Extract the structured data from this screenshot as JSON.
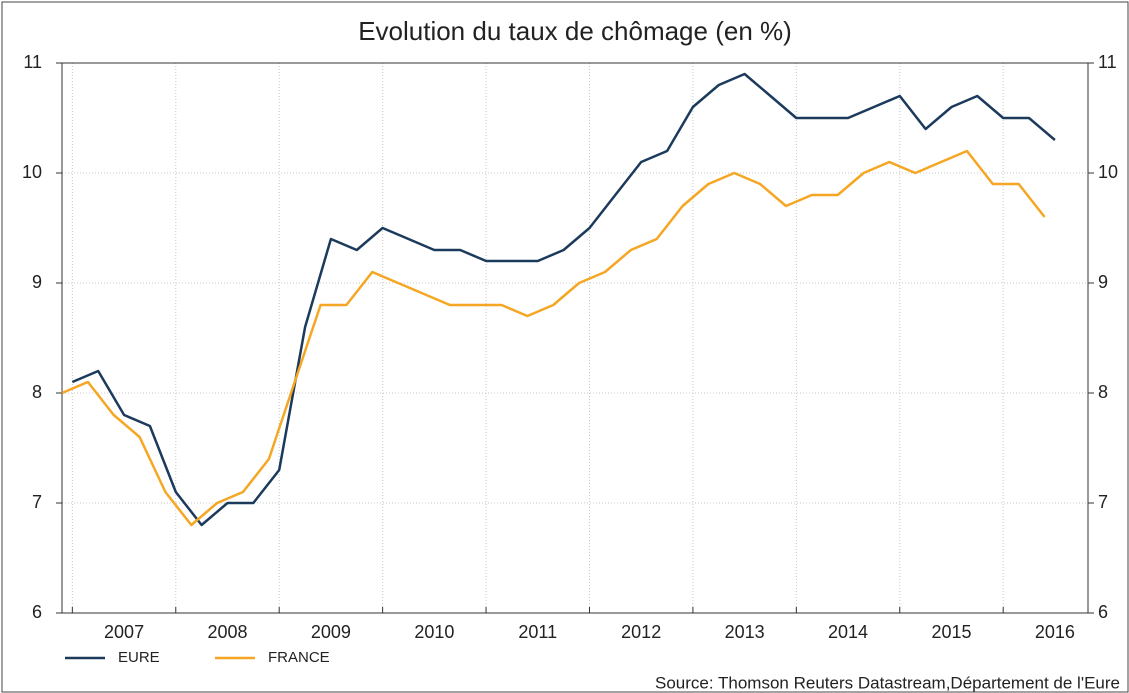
{
  "chart_data": {
    "type": "line",
    "title": "Evolution du taux de chômage (en %)",
    "source": "Source: Thomson Reuters Datastream,Département de l'Eure",
    "xlim": [
      2006.9,
      2016.82
    ],
    "xticks": [
      2007,
      2008,
      2009,
      2010,
      2011,
      2012,
      2013,
      2014,
      2015,
      2016
    ],
    "ylim": [
      6,
      11
    ],
    "yticks": [
      6,
      7,
      8,
      9,
      10,
      11
    ],
    "y2lim": [
      6,
      11
    ],
    "y2ticks": [
      6,
      7,
      8,
      9,
      10,
      11
    ],
    "grid": true,
    "legend": "bottom-left",
    "series": [
      {
        "name": "EURE",
        "color": "#1b3a5c",
        "x": [
          2007,
          2007.25,
          2007.5,
          2007.75,
          2008,
          2008.25,
          2008.5,
          2008.75,
          2009,
          2009.25,
          2009.5,
          2009.75,
          2010,
          2010.25,
          2010.5,
          2010.75,
          2011,
          2011.25,
          2011.5,
          2011.75,
          2012,
          2012.25,
          2012.5,
          2012.75,
          2013,
          2013.25,
          2013.5,
          2013.75,
          2014,
          2014.25,
          2014.5,
          2014.75,
          2015,
          2015.25,
          2015.5,
          2015.75,
          2016,
          2016.25,
          2016.5
        ],
        "values": [
          8.1,
          8.2,
          7.8,
          7.7,
          7.1,
          6.8,
          7.0,
          7.0,
          7.3,
          8.6,
          9.4,
          9.3,
          9.5,
          9.4,
          9.3,
          9.3,
          9.2,
          9.2,
          9.2,
          9.3,
          9.5,
          9.8,
          10.1,
          10.2,
          10.6,
          10.8,
          10.9,
          10.7,
          10.5,
          10.5,
          10.5,
          10.6,
          10.7,
          10.4,
          10.6,
          10.7,
          10.5,
          10.5,
          10.3
        ]
      },
      {
        "name": "FRANCE",
        "color": "#f5a623",
        "x": [
          2006.9,
          2007.15,
          2007.4,
          2007.65,
          2007.9,
          2008.15,
          2008.4,
          2008.65,
          2008.9,
          2009.15,
          2009.4,
          2009.65,
          2009.9,
          2010.15,
          2010.4,
          2010.65,
          2010.9,
          2011.15,
          2011.4,
          2011.65,
          2011.9,
          2012.15,
          2012.4,
          2012.65,
          2012.9,
          2013.15,
          2013.4,
          2013.65,
          2013.9,
          2014.15,
          2014.4,
          2014.65,
          2014.9,
          2015.15,
          2015.4,
          2015.65,
          2015.9,
          2016.15,
          2016.4
        ],
        "values": [
          8.0,
          8.1,
          7.8,
          7.6,
          7.1,
          6.8,
          7.0,
          7.1,
          7.4,
          8.1,
          8.8,
          8.8,
          9.1,
          9.0,
          8.9,
          8.8,
          8.8,
          8.8,
          8.7,
          8.8,
          9.0,
          9.1,
          9.3,
          9.4,
          9.7,
          9.9,
          10.0,
          9.9,
          9.7,
          9.8,
          9.8,
          10.0,
          10.1,
          10.0,
          10.1,
          10.2,
          9.9,
          9.9,
          9.6
        ]
      }
    ]
  }
}
